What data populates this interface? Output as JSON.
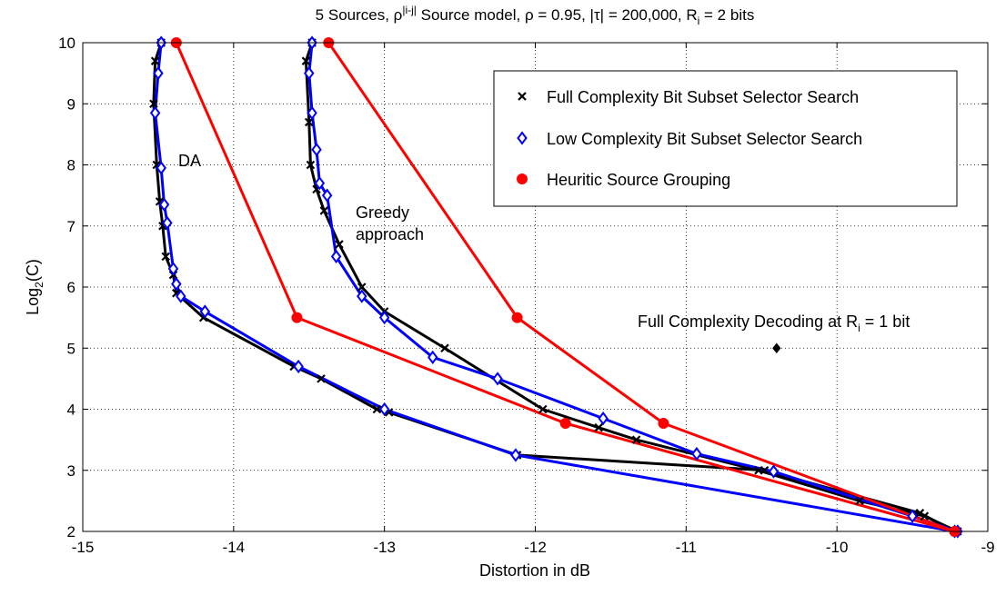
{
  "chart_data": {
    "type": "line",
    "title": {
      "prefix": "5 Sources, ρ",
      "sup": "|i-j|",
      "middle": " Source model, ρ = 0.95, |τ| = 200,000, R",
      "sub": "i",
      "suffix": " = 2 bits"
    },
    "xlabel": "Distortion in dB",
    "ylabel": {
      "prefix": "Log",
      "sub": "2",
      "suffix": "(C)"
    },
    "xlim": [
      -15,
      -9
    ],
    "ylim": [
      2,
      10
    ],
    "xticks": [
      "-15",
      "-14",
      "-13",
      "-12",
      "-11",
      "-10",
      "-9"
    ],
    "yticks": [
      "2",
      "3",
      "4",
      "5",
      "6",
      "7",
      "8",
      "9",
      "10"
    ],
    "grid": true,
    "legend_position": "top-right",
    "series": [
      {
        "name": "Full Complexity Bit Subset Selector Search",
        "color": "#000000",
        "marker": "x",
        "x": [
          -14.48,
          -14.52,
          -14.53,
          -14.51,
          -14.49,
          -14.47,
          -14.45,
          -14.4,
          -14.38,
          -14.2,
          -13.6,
          -13.42,
          -13.05,
          -12.97,
          -12.12,
          -10.48,
          -9.45,
          -9.22
        ],
        "y": [
          10.0,
          9.7,
          9.0,
          8.0,
          7.4,
          7.0,
          6.5,
          6.2,
          5.9,
          5.5,
          4.7,
          4.5,
          4.0,
          3.95,
          3.25,
          3.0,
          2.3,
          2.0
        ],
        "x2": [
          -13.48,
          -13.52,
          -13.5,
          -13.49,
          -13.45,
          -13.4,
          -13.3,
          -13.15,
          -13.0,
          -12.6,
          -11.95,
          -11.58,
          -11.33,
          -10.52,
          -9.85,
          -9.42,
          -9.2
        ],
        "y2": [
          10.0,
          9.7,
          8.7,
          8.0,
          7.6,
          7.25,
          6.7,
          6.0,
          5.6,
          5.0,
          4.0,
          3.7,
          3.5,
          3.0,
          2.5,
          2.25,
          2.0
        ]
      },
      {
        "name": "Low Complexity Bit Subset Selector Search",
        "color": "#0000ff",
        "marker": "diamond",
        "x": [
          -14.48,
          -14.5,
          -14.52,
          -14.48,
          -14.46,
          -14.44,
          -14.4,
          -14.38,
          -14.35,
          -14.19,
          -13.57,
          -13.0,
          -12.13,
          -9.22
        ],
        "y": [
          10.0,
          9.5,
          8.85,
          7.95,
          7.35,
          7.05,
          6.3,
          6.05,
          5.85,
          5.6,
          4.7,
          4.0,
          3.25,
          2.0
        ],
        "x2": [
          -13.48,
          -13.5,
          -13.48,
          -13.45,
          -13.43,
          -13.38,
          -13.32,
          -13.15,
          -13.0,
          -12.68,
          -12.25,
          -11.55,
          -10.93,
          -10.42,
          -9.5,
          -9.2
        ],
        "y2": [
          10.0,
          9.5,
          8.85,
          8.25,
          7.7,
          7.5,
          6.5,
          5.85,
          5.5,
          4.85,
          4.5,
          3.85,
          3.27,
          2.98,
          2.25,
          2.0
        ]
      },
      {
        "name": "Heuritic Source Grouping",
        "color": "#ff0000",
        "marker": "circle",
        "x": [
          -14.38,
          -13.58,
          -11.8,
          -9.22
        ],
        "y": [
          10.0,
          5.5,
          3.77,
          2.0
        ],
        "x2": [
          -13.37,
          -12.12,
          -11.15,
          -9.22
        ],
        "y2": [
          10.0,
          5.5,
          3.77,
          2.0
        ]
      },
      {
        "name": "Full Complexity Decoding at R_i = 1 bit",
        "color": "#000000",
        "marker": "filled-diamond",
        "x": [
          -10.4
        ],
        "y": [
          5.0
        ]
      }
    ],
    "annotations": [
      {
        "text": "DA",
        "x": -14.3,
        "y": 8.05
      },
      {
        "text": "Greedy",
        "x": -13.33,
        "y": 7.2
      },
      {
        "text": "approach",
        "x": -13.33,
        "y": 6.8
      },
      {
        "prefix": "Full Complexity Decoding at R",
        "sub": "i",
        "suffix": " = 1 bit",
        "x": -11.16,
        "y": 5.37
      }
    ]
  }
}
